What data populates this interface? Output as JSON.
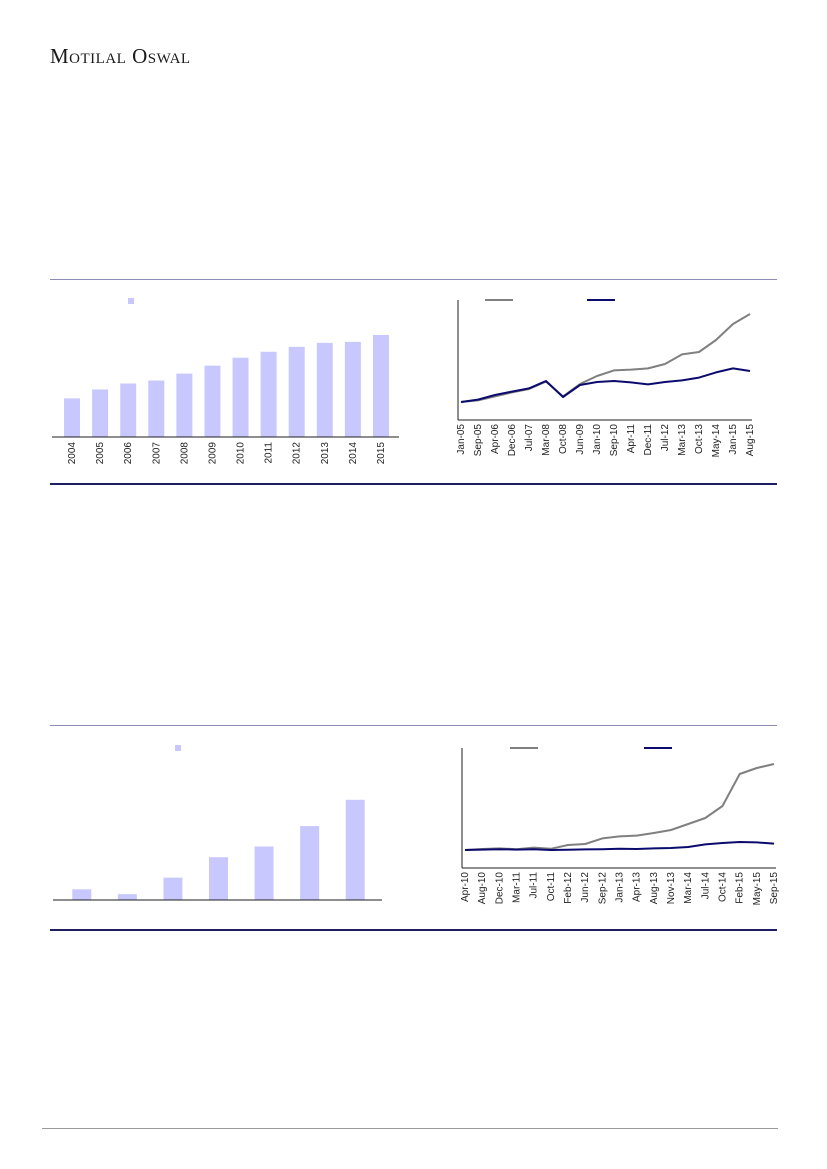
{
  "header": {
    "brand": "Motilal Oswal"
  },
  "colors": {
    "bar": "#c8c8ff",
    "gray_series": "#808080",
    "navy_series": "#0b0b6e",
    "axis": "#1e1e1e",
    "rule_light": "#8c8cb4",
    "rule_dark": "#1e1e64"
  },
  "chart_data": [
    {
      "type": "bar",
      "categories": [
        "2004",
        "2005",
        "2006",
        "2007",
        "2008",
        "2009",
        "2010",
        "2011",
        "2012",
        "2013",
        "2014",
        "2015"
      ],
      "values": [
        39,
        48,
        54,
        57,
        64,
        72,
        80,
        86,
        91,
        95,
        96,
        103
      ],
      "ylim": [
        0,
        110
      ],
      "legend": {
        "position": "top-left",
        "swatch_color": "#c8c8ff"
      }
    },
    {
      "type": "line",
      "x": [
        "Jan-05",
        "Sep-05",
        "Apr-06",
        "Dec-06",
        "Jul-07",
        "Mar-08",
        "Oct-08",
        "Jun-09",
        "Jan-10",
        "Sep-10",
        "Apr-11",
        "Dec-11",
        "Jul-12",
        "Mar-13",
        "Oct-13",
        "May-14",
        "Jan-15",
        "Aug-15"
      ],
      "series": [
        {
          "color": "#808080",
          "values": [
            100,
            108,
            128,
            148,
            165,
            202,
            128,
            190,
            230,
            258,
            262,
            268,
            290,
            338,
            350,
            410,
            490,
            540
          ]
        },
        {
          "color": "#0b0b6e",
          "values": [
            100,
            112,
            135,
            152,
            168,
            205,
            125,
            185,
            200,
            205,
            198,
            188,
            200,
            208,
            222,
            248,
            268,
            255
          ]
        }
      ],
      "ylim": [
        60,
        560
      ],
      "legend": {
        "position": "top"
      }
    },
    {
      "type": "bar",
      "categories": [
        "",
        "",
        "",
        "",
        "",
        "",
        ""
      ],
      "values": [
        11,
        6,
        23,
        44,
        55,
        76,
        103
      ],
      "ylim": [
        0,
        110
      ],
      "legend": {
        "position": "top-left",
        "swatch_color": "#c8c8ff"
      }
    },
    {
      "type": "line",
      "x": [
        "Apr-10",
        "Aug-10",
        "Dec-10",
        "Mar-11",
        "Jul-11",
        "Oct-11",
        "Feb-12",
        "Jun-12",
        "Sep-12",
        "Jan-13",
        "Apr-13",
        "Aug-13",
        "Nov-13",
        "Mar-14",
        "Jul-14",
        "Oct-14",
        "Feb-15",
        "May-15",
        "Sep-15"
      ],
      "series": [
        {
          "color": "#808080",
          "values": [
            100,
            105,
            108,
            104,
            112,
            106,
            125,
            130,
            158,
            168,
            172,
            185,
            200,
            230,
            260,
            320,
            480,
            510,
            530
          ]
        },
        {
          "color": "#0b0b6e",
          "values": [
            100,
            102,
            104,
            102,
            104,
            100,
            101,
            103,
            104,
            106,
            105,
            108,
            110,
            115,
            128,
            135,
            140,
            138,
            132
          ]
        }
      ],
      "ylim": [
        60,
        560
      ],
      "legend": {
        "position": "top"
      }
    }
  ]
}
